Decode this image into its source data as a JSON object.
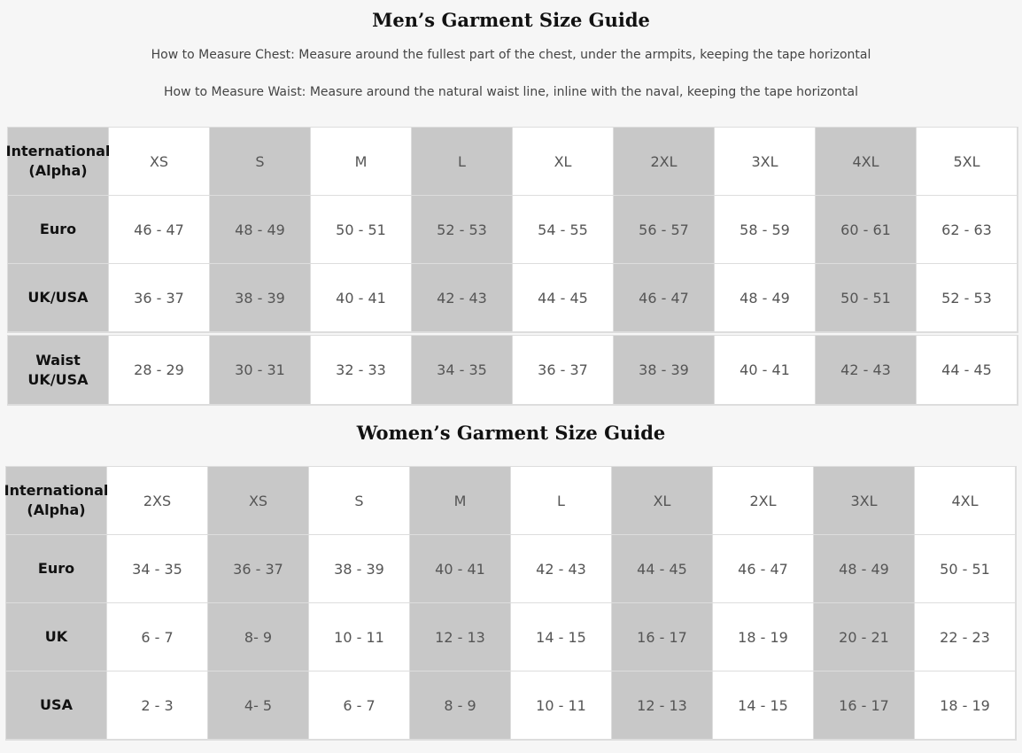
{
  "mens": {
    "title": "Men’s Garment Size Guide",
    "chest_instruction": "How to Measure Chest: Measure around the fullest part of the chest, under the armpits, keeping the tape horizontal",
    "waist_instruction": "How to Measure Waist: Measure around the natural waist line, inline with the naval, keeping the tape horizontal",
    "chest_rows": [
      {
        "label": "International\n(Alpha)",
        "values": [
          "XS",
          "S",
          "M",
          "L",
          "XL",
          "2XL",
          "3XL",
          "4XL",
          "5XL"
        ]
      },
      {
        "label": "Euro",
        "values": [
          "46 - 47",
          "48 - 49",
          "50 - 51",
          "52 - 53",
          "54 - 55",
          "56 - 57",
          "58 - 59",
          "60 - 61",
          "62 - 63"
        ]
      },
      {
        "label": "UK/USA",
        "values": [
          "36 - 37",
          "38 - 39",
          "40 - 41",
          "42 - 43",
          "44 - 45",
          "46 - 47",
          "48 - 49",
          "50 - 51",
          "52 - 53"
        ]
      }
    ],
    "waist_rows": [
      {
        "label": "Waist\nUK/USA",
        "values": [
          "28 - 29",
          "30 - 31",
          "32 - 33",
          "34 - 35",
          "36 - 37",
          "38 - 39",
          "40 - 41",
          "42 - 43",
          "44 - 45"
        ]
      }
    ]
  },
  "womens": {
    "title": "Women’s Garment Size Guide",
    "rows": [
      {
        "label": "International\n(Alpha)",
        "values": [
          "2XS",
          "XS",
          "S",
          "M",
          "L",
          "XL",
          "2XL",
          "3XL",
          "4XL"
        ]
      },
      {
        "label": "Euro",
        "values": [
          "34 - 35",
          "36 - 37",
          "38 - 39",
          "40 - 41",
          "42 - 43",
          "44 - 45",
          "46 - 47",
          "48 - 49",
          "50 - 51"
        ]
      },
      {
        "label": "UK",
        "values": [
          "6 - 7",
          "8- 9",
          "10 - 11",
          "12 - 13",
          "14 - 15",
          "16 - 17",
          "18 - 19",
          "20 - 21",
          "22 - 23"
        ]
      },
      {
        "label": "USA",
        "values": [
          "2 - 3",
          "4- 5",
          "6 - 7",
          "8 - 9",
          "10 - 11",
          "12 - 13",
          "14 - 15",
          "16 - 17",
          "18 - 19"
        ]
      }
    ]
  },
  "colors": {
    "shaded_column": "#c8c8c8",
    "background": "#f6f6f6"
  }
}
